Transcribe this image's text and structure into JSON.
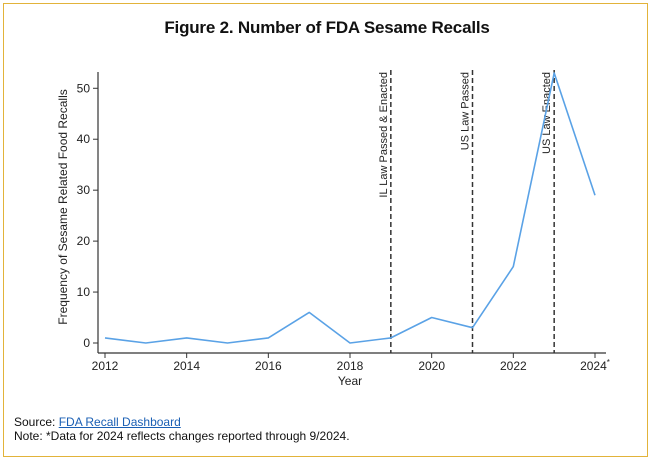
{
  "figure": {
    "title": "Figure 2. Number of FDA Sesame Recalls"
  },
  "footer": {
    "source_prefix": "Source: ",
    "source_link": "FDA Recall Dashboard",
    "note": "Note: *Data for 2024 reflects changes reported through 9/2024."
  },
  "colors": {
    "border": "#e2b33a",
    "line": "#5aa2e6",
    "axis": "#333333",
    "link": "#1a5fb4"
  },
  "chart_data": {
    "type": "line",
    "title": "Figure 2. Number of FDA Sesame Recalls",
    "xlabel": "Year",
    "ylabel": "Frequency of Sesame Related Food Recalls",
    "xlim": [
      2012,
      2024
    ],
    "ylim": [
      0,
      53
    ],
    "x_ticks": [
      2012,
      2014,
      2016,
      2018,
      2020,
      2022,
      2024
    ],
    "x_tick_labels": [
      "2012",
      "2014",
      "2016",
      "2018",
      "2020",
      "2022",
      "2024*"
    ],
    "y_ticks": [
      0,
      10,
      20,
      30,
      40,
      50
    ],
    "y_tick_labels": [
      "0",
      "10",
      "20",
      "30",
      "40",
      "50"
    ],
    "grid": false,
    "series": [
      {
        "x": [
          2012,
          2013,
          2014,
          2015,
          2016,
          2017,
          2018,
          2019,
          2020,
          2021,
          2022,
          2023,
          2024
        ],
        "values": [
          1,
          0,
          1,
          0,
          1,
          6,
          0,
          1,
          5,
          3,
          15,
          53,
          29
        ]
      }
    ],
    "annotations": [
      {
        "x": 2019,
        "label": "IL Law Passed & Enacted"
      },
      {
        "x": 2021,
        "label": "US Law Passed"
      },
      {
        "x": 2023,
        "label": "US Law Enacted"
      }
    ]
  }
}
